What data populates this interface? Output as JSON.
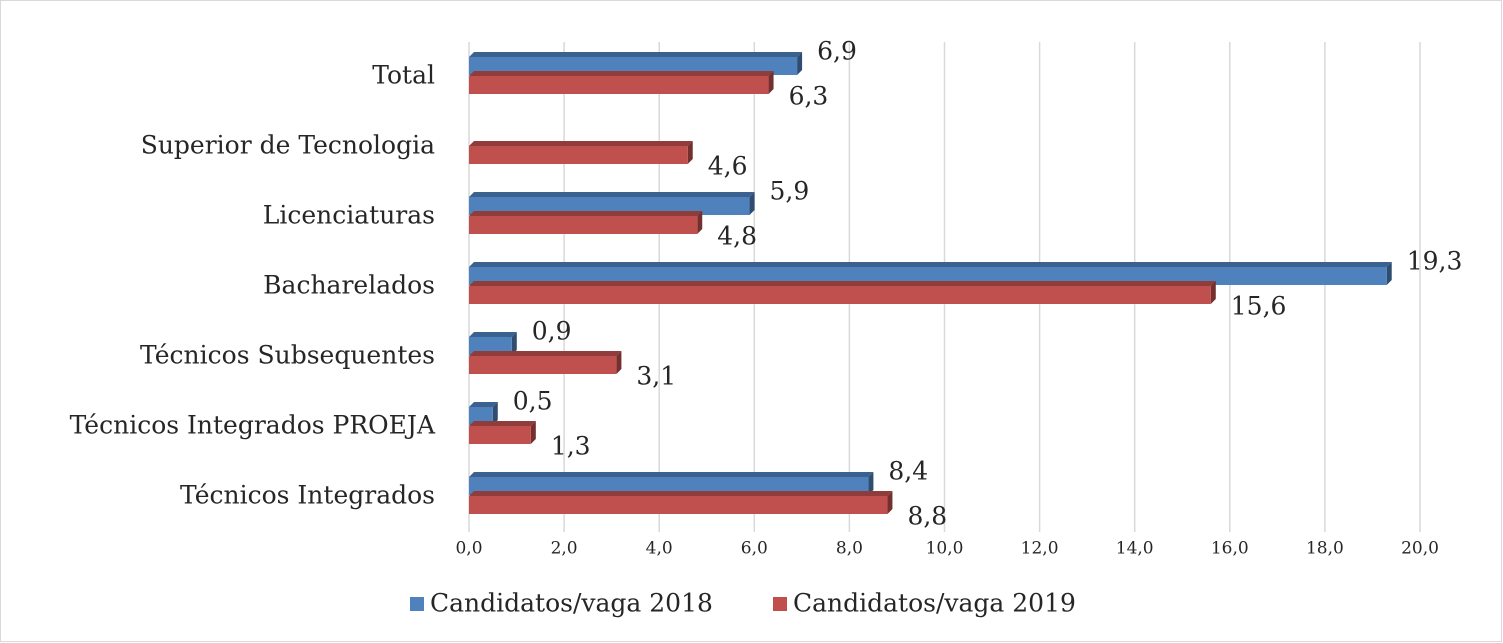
{
  "chart_data": {
    "type": "hbar",
    "categories": [
      "Total",
      "Superior de Tecnologia",
      "Licenciaturas",
      "Bacharelados",
      "Técnicos Subsequentes",
      "Técnicos Integrados PROEJA",
      "Técnicos Integrados"
    ],
    "series": [
      {
        "name": "Candidatos/vaga 2018",
        "color": "#4f81bd",
        "values": [
          6.9,
          null,
          5.9,
          19.3,
          0.9,
          0.5,
          8.4
        ],
        "value_labels": [
          "6,9",
          null,
          "5,9",
          "19,3",
          "0,9",
          "0,5",
          "8,4"
        ]
      },
      {
        "name": "Candidatos/vaga 2019",
        "color": "#c0504d",
        "values": [
          6.3,
          4.6,
          4.8,
          15.6,
          3.1,
          1.3,
          8.8
        ],
        "value_labels": [
          "6,3",
          "4,6",
          "4,8",
          "15,6",
          "3,1",
          "1,3",
          "8,8"
        ]
      }
    ],
    "xlim": [
      0,
      20
    ],
    "xticks": [
      {
        "value": 0,
        "label": "0,0"
      },
      {
        "value": 2,
        "label": "2,0"
      },
      {
        "value": 4,
        "label": "4,0"
      },
      {
        "value": 6,
        "label": "6,0"
      },
      {
        "value": 8,
        "label": "8,0"
      },
      {
        "value": 10,
        "label": "10,0"
      },
      {
        "value": 12,
        "label": "12,0"
      },
      {
        "value": 14,
        "label": "14,0"
      },
      {
        "value": 16,
        "label": "16,0"
      },
      {
        "value": 18,
        "label": "18,0"
      },
      {
        "value": 20,
        "label": "20,0"
      }
    ],
    "grid": true,
    "legend": "bottom"
  }
}
